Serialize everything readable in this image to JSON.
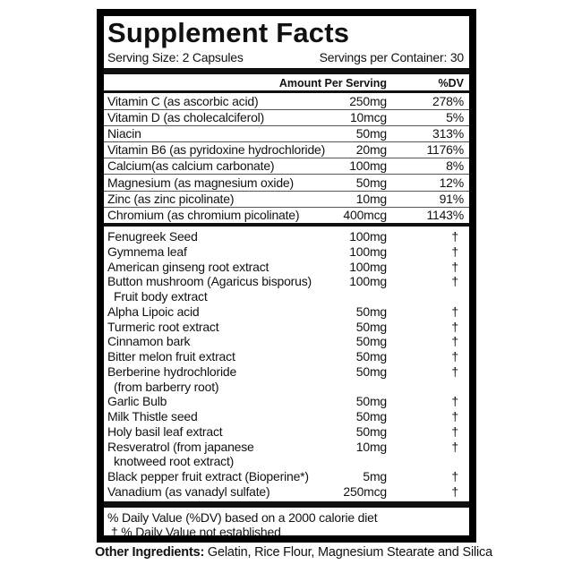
{
  "title": "Supplement Facts",
  "serving_size": "Serving Size: 2 Capsules",
  "servings_per_container": "Servings per Container: 30",
  "header": {
    "amount": "Amount Per Serving",
    "dv": "%DV"
  },
  "dv_nutrients": [
    {
      "name": "Vitamin C (as ascorbic acid)",
      "amount": "250mg",
      "dv": "278%"
    },
    {
      "name": "Vitamin D (as cholecalciferol)",
      "amount": "10mcg",
      "dv": "5%"
    },
    {
      "name": "Niacin",
      "amount": "50mg",
      "dv": "313%"
    },
    {
      "name": "Vitamin B6 (as pyridoxine hydrochloride)",
      "amount": "20mg",
      "dv": "1176%"
    },
    {
      "name": "Calcium(as calcium carbonate)",
      "amount": "100mg",
      "dv": "8%"
    },
    {
      "name": "Magnesium (as magnesium oxide)",
      "amount": "50mg",
      "dv": "12%"
    },
    {
      "name": "Zinc (as zinc picolinate)",
      "amount": "10mg",
      "dv": "91%"
    },
    {
      "name": "Chromium (as chromium picolinate)",
      "amount": "400mcg",
      "dv": "1143%"
    }
  ],
  "other_nutrients": [
    {
      "name": "Fenugreek Seed",
      "amount": "100mg",
      "dv": "†"
    },
    {
      "name": "Gymnema leaf",
      "amount": "100mg",
      "dv": "†"
    },
    {
      "name": "American ginseng root extract",
      "amount": "100mg",
      "dv": "†"
    },
    {
      "name": "Button mushroom (Agaricus bisporus)",
      "name2": "Fruit body extract",
      "amount": "100mg",
      "dv": "†"
    },
    {
      "name": "Alpha Lipoic acid",
      "amount": "50mg",
      "dv": "†"
    },
    {
      "name": "Turmeric root extract",
      "amount": "50mg",
      "dv": "†"
    },
    {
      "name": "Cinnamon bark",
      "amount": "50mg",
      "dv": "†"
    },
    {
      "name": "Bitter melon fruit extract",
      "amount": "50mg",
      "dv": "†"
    },
    {
      "name": "Berberine hydrochloride",
      "name2": "(from barberry root)",
      "amount": "50mg",
      "dv": "†"
    },
    {
      "name": "Garlic Bulb",
      "amount": "50mg",
      "dv": "†"
    },
    {
      "name": "Milk Thistle seed",
      "amount": "50mg",
      "dv": "†"
    },
    {
      "name": "Holy basil leaf extract",
      "amount": "50mg",
      "dv": "†"
    },
    {
      "name": "Resveratrol (from japanese",
      "name2": "knotweed root extract)",
      "amount": "10mg",
      "dv": "†"
    },
    {
      "name": "Black pepper fruit extract (Bioperine*)",
      "amount": "5mg",
      "dv": "†"
    },
    {
      "name": "Vanadium (as vanadyl sulfate)",
      "amount": "250mcg",
      "dv": "†"
    }
  ],
  "footnotes": [
    "% Daily Value (%DV) based on a 2000 calorie diet",
    "† % Daily Value not established"
  ],
  "other_ingredients": {
    "label": "Other Ingredients:",
    "value": " Gelatin, Rice Flour, Magnesium Stearate and Silica"
  }
}
